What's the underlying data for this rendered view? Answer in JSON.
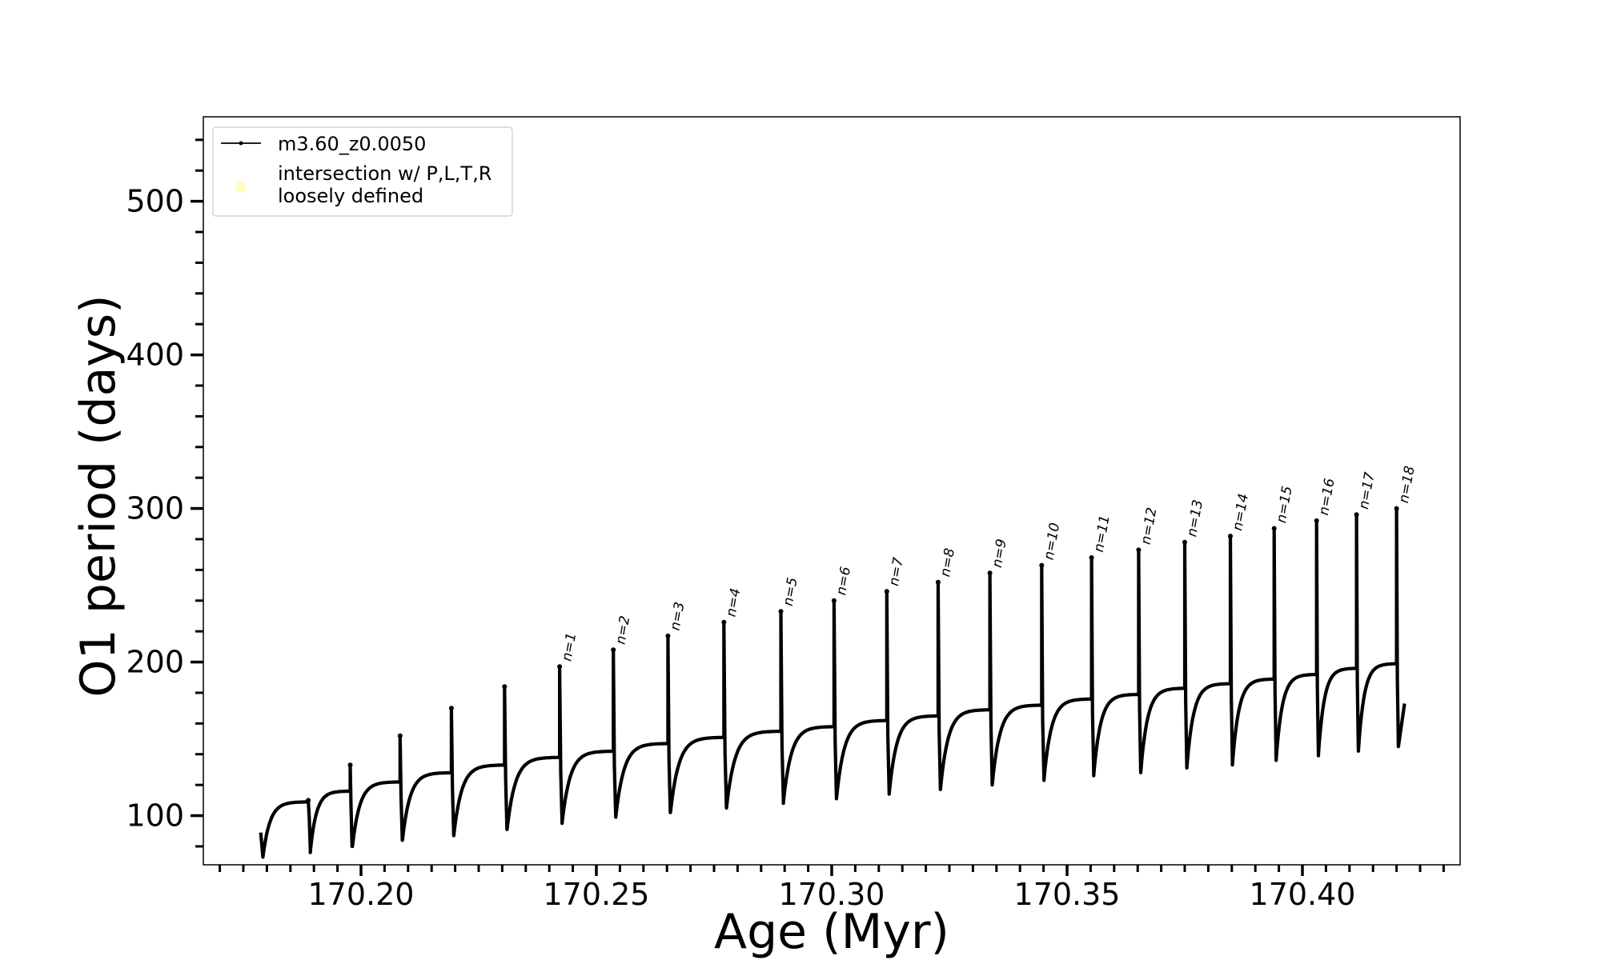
{
  "chart_data": {
    "type": "line",
    "title": "",
    "xlabel": "Age (Myr)",
    "ylabel": "O1 period (days)",
    "xlim": [
      170.1665,
      170.4335
    ],
    "ylim": [
      68,
      555
    ],
    "x_ticks": [
      170.2,
      170.25,
      170.3,
      170.35,
      170.4
    ],
    "x_tick_labels": [
      "170.20",
      "170.25",
      "170.30",
      "170.35",
      "170.40"
    ],
    "x_minor_step": 0.005,
    "y_ticks": [
      100,
      200,
      300,
      400,
      500
    ],
    "y_tick_labels": [
      "100",
      "200",
      "300",
      "400",
      "500"
    ],
    "y_minor_step": 20,
    "grid": false,
    "legend": {
      "placement": "top-left",
      "entries": [
        {
          "label": "m3.60_z0.0050",
          "style": "line-with-dots",
          "color": "#000000"
        },
        {
          "label": "intersection w/ P,L,T,R",
          "label_line2": "loosely defined",
          "style": "marker",
          "color": "#fffcc0"
        }
      ]
    },
    "series": [
      {
        "name": "m3.60_z0.0050",
        "color": "#000000",
        "start": {
          "age": 170.1787,
          "period": 89,
          "min": 73
        },
        "cycles": [
          {
            "age": 170.1888,
            "pre": 109,
            "peak": 110,
            "min": 76
          },
          {
            "age": 170.1977,
            "pre": 116,
            "peak": 133,
            "min": 80
          },
          {
            "age": 170.2083,
            "pre": 122,
            "peak": 152,
            "min": 84
          },
          {
            "age": 170.2192,
            "pre": 128,
            "peak": 170,
            "min": 87
          },
          {
            "age": 170.2305,
            "pre": 133,
            "peak": 184,
            "min": 91
          },
          {
            "age": 170.2422,
            "pre": 138,
            "peak": 197,
            "min": 95
          },
          {
            "age": 170.2536,
            "pre": 142,
            "peak": 208,
            "min": 99
          },
          {
            "age": 170.2652,
            "pre": 147,
            "peak": 217,
            "min": 102
          },
          {
            "age": 170.2771,
            "pre": 151,
            "peak": 226,
            "min": 105
          },
          {
            "age": 170.2892,
            "pre": 155,
            "peak": 233,
            "min": 108
          },
          {
            "age": 170.3005,
            "pre": 158,
            "peak": 240,
            "min": 111
          },
          {
            "age": 170.3117,
            "pre": 162,
            "peak": 246,
            "min": 114
          },
          {
            "age": 170.3226,
            "pre": 165,
            "peak": 252,
            "min": 117
          },
          {
            "age": 170.3336,
            "pre": 169,
            "peak": 258,
            "min": 120
          },
          {
            "age": 170.3446,
            "pre": 172,
            "peak": 263,
            "min": 123
          },
          {
            "age": 170.3552,
            "pre": 176,
            "peak": 268,
            "min": 126
          },
          {
            "age": 170.3652,
            "pre": 179,
            "peak": 273,
            "min": 128
          },
          {
            "age": 170.375,
            "pre": 183,
            "peak": 278,
            "min": 131
          },
          {
            "age": 170.3847,
            "pre": 186,
            "peak": 282,
            "min": 133
          },
          {
            "age": 170.394,
            "pre": 189,
            "peak": 287,
            "min": 136
          },
          {
            "age": 170.403,
            "pre": 192,
            "peak": 292,
            "min": 139
          },
          {
            "age": 170.4115,
            "pre": 196,
            "peak": 296,
            "min": 142
          },
          {
            "age": 170.42,
            "pre": 199,
            "peak": 300,
            "min": 145
          }
        ],
        "end": {
          "age": 170.4217,
          "period": 173
        }
      }
    ],
    "annotations": [
      {
        "text": "n=1",
        "age": 170.2422,
        "period": 197
      },
      {
        "text": "n=2",
        "age": 170.2536,
        "period": 208
      },
      {
        "text": "n=3",
        "age": 170.2652,
        "period": 217
      },
      {
        "text": "n=4",
        "age": 170.2771,
        "period": 226
      },
      {
        "text": "n=5",
        "age": 170.2892,
        "period": 233
      },
      {
        "text": "n=6",
        "age": 170.3005,
        "period": 240
      },
      {
        "text": "n=7",
        "age": 170.3117,
        "period": 246
      },
      {
        "text": "n=8",
        "age": 170.3226,
        "period": 252
      },
      {
        "text": "n=9",
        "age": 170.3336,
        "period": 258
      },
      {
        "text": "n=10",
        "age": 170.3446,
        "period": 263
      },
      {
        "text": "n=11",
        "age": 170.3552,
        "period": 268
      },
      {
        "text": "n=12",
        "age": 170.3652,
        "period": 273
      },
      {
        "text": "n=13",
        "age": 170.375,
        "period": 278
      },
      {
        "text": "n=14",
        "age": 170.3847,
        "period": 282
      },
      {
        "text": "n=15",
        "age": 170.394,
        "period": 287
      },
      {
        "text": "n=16",
        "age": 170.403,
        "period": 292
      },
      {
        "text": "n=17",
        "age": 170.4115,
        "period": 296
      },
      {
        "text": "n=18",
        "age": 170.42,
        "period": 300
      }
    ]
  }
}
